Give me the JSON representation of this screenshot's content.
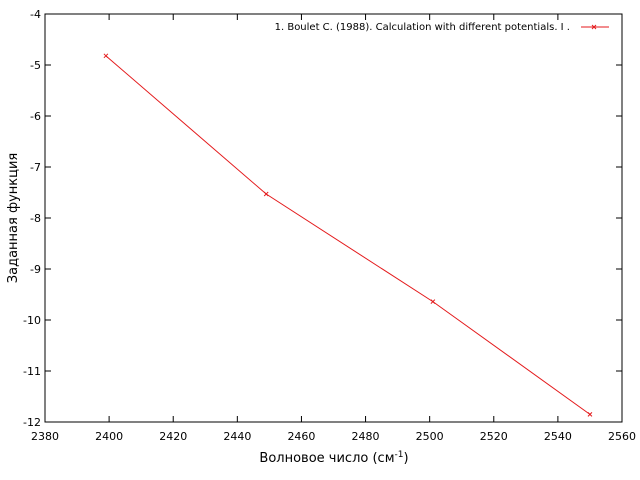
{
  "chart_data": {
    "type": "line",
    "title": "",
    "xlabel": "Волновое число (см",
    "xlabel_sup": "-1",
    "xlabel_close": ")",
    "ylabel": "Заданная функция",
    "xlim": [
      2380,
      2560
    ],
    "ylim": [
      -12,
      -4
    ],
    "x_ticks": [
      2380,
      2400,
      2420,
      2440,
      2460,
      2480,
      2500,
      2520,
      2540,
      2560
    ],
    "y_ticks": [
      -4,
      -5,
      -6,
      -7,
      -8,
      -9,
      -10,
      -11,
      -12
    ],
    "grid": false,
    "legend_position": "top-right",
    "series": [
      {
        "name": "1. Boulet C. (1988). Calculation with different potentials. I .",
        "color": "#e41a1c",
        "marker": "x",
        "x": [
          2399,
          2449,
          2501,
          2550
        ],
        "y": [
          -4.82,
          -7.53,
          -9.64,
          -11.85
        ]
      }
    ]
  }
}
